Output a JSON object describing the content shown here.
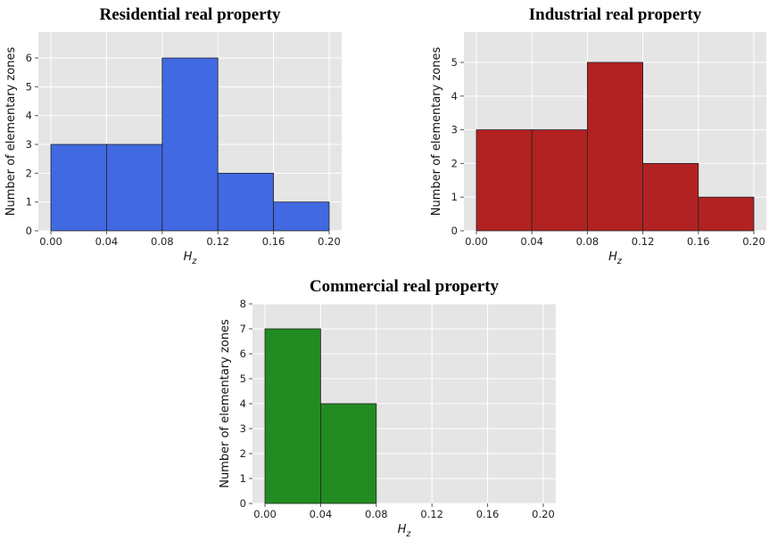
{
  "chart_data": [
    {
      "type": "bar",
      "title": "Residential real property",
      "xlabel": "H",
      "xlabel_sub": "z",
      "ylabel": "Number of elementary zones",
      "bin_edges": [
        0.0,
        0.04,
        0.08,
        0.12,
        0.16,
        0.2
      ],
      "values": [
        3,
        3,
        6,
        2,
        1
      ],
      "xticks": [
        "0.00",
        "0.04",
        "0.08",
        "0.12",
        "0.16",
        "0.20"
      ],
      "yticks": [
        0,
        1,
        2,
        3,
        4,
        5,
        6
      ],
      "xlim": [
        -0.009,
        0.209
      ],
      "ylim": [
        0,
        6.9
      ],
      "color": "#4169E1",
      "grid": true
    },
    {
      "type": "bar",
      "title": "Industrial real property",
      "xlabel": "H",
      "xlabel_sub": "z",
      "ylabel": "Number of elementary zones",
      "bin_edges": [
        0.0,
        0.04,
        0.08,
        0.12,
        0.16,
        0.2
      ],
      "values": [
        3,
        3,
        5,
        2,
        1
      ],
      "xticks": [
        "0.00",
        "0.04",
        "0.08",
        "0.12",
        "0.16",
        "0.20"
      ],
      "yticks": [
        0,
        1,
        2,
        3,
        4,
        5
      ],
      "xlim": [
        -0.009,
        0.209
      ],
      "ylim": [
        0,
        5.9
      ],
      "color": "#B22222",
      "grid": true
    },
    {
      "type": "bar",
      "title": "Commercial real property",
      "xlabel": "H",
      "xlabel_sub": "z",
      "ylabel": "Number of elementary zones",
      "bin_edges": [
        0.0,
        0.04,
        0.08,
        0.12,
        0.16,
        0.2
      ],
      "values": [
        7,
        4,
        0,
        0,
        0
      ],
      "xticks": [
        "0.00",
        "0.04",
        "0.08",
        "0.12",
        "0.16",
        "0.20"
      ],
      "yticks": [
        0,
        1,
        2,
        3,
        4,
        5,
        6,
        7,
        8
      ],
      "xlim": [
        -0.009,
        0.209
      ],
      "ylim": [
        0,
        8.0
      ],
      "color": "#228B22",
      "grid": true
    }
  ]
}
